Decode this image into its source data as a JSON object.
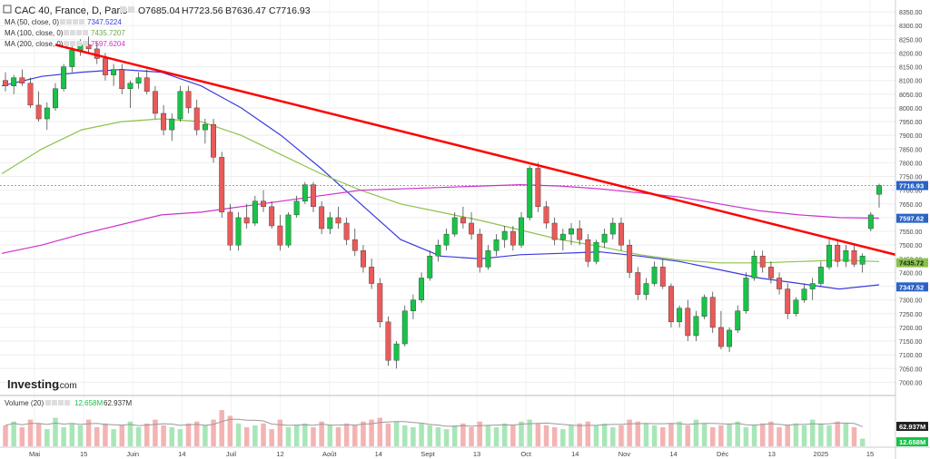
{
  "header": {
    "symbol": "CAC 40, France, D, Paris",
    "ohlc": {
      "open": "O7685.04",
      "high": "H7723.56",
      "low": "B7636.47",
      "close": "C7716.93"
    }
  },
  "legend": [
    {
      "label": "MA (50, close, 0)",
      "value": "7347.5224",
      "color": "#3a3adf"
    },
    {
      "label": "MA (100, close, 0)",
      "value": "7435.7207",
      "color": "#8bc34a"
    },
    {
      "label": "MA (200, close, 0)",
      "value": "7597.6204",
      "color": "#cc33cc"
    }
  ],
  "volume_legend": {
    "label": "Volume (20)",
    "value1": "12.658M",
    "value2": "62.937M"
  },
  "brand": {
    "name": "Investing",
    "suffix": ".com"
  },
  "colors": {
    "up": "#19c249",
    "down": "#e85b5b",
    "trendline": "#ff0000",
    "ma50": "#3a3adf",
    "ma100": "#8bc34a",
    "ma200": "#cc33cc"
  },
  "chart_data": {
    "type": "candlestick",
    "title": "CAC 40, France, D, Paris",
    "y_axis": {
      "ticks": [
        "8350.00",
        "8300.00",
        "8250.00",
        "8200.00",
        "8150.00",
        "8100.00",
        "8050.00",
        "8000.00",
        "7950.00",
        "7900.00",
        "7850.00",
        "7800.00",
        "7750.00",
        "7700.00",
        "7650.00",
        "7600.00",
        "7550.00",
        "7500.00",
        "7450.00",
        "7400.00",
        "7350.00",
        "7300.00",
        "7250.00",
        "7200.00",
        "7150.00",
        "7100.00",
        "7050.00",
        "7000.00"
      ],
      "range": [
        6965,
        8380
      ]
    },
    "x_axis": {
      "ticks": [
        "Mai",
        "15",
        "Juin",
        "14",
        "Juil",
        "12",
        "Août",
        "14",
        "Sept",
        "13",
        "Oct",
        "14",
        "Nov",
        "14",
        "Déc",
        "13",
        "2025",
        "15"
      ]
    },
    "price_labels": {
      "last": "7716.93",
      "ma200": "7597.62",
      "ma100": "7435.72",
      "ma50": "7347.52"
    },
    "ma_series": {
      "ma50": [
        8080,
        8115,
        8130,
        8140,
        8130,
        8080,
        8000,
        7900,
        7780,
        7650,
        7520,
        7460,
        7450,
        7465,
        7470,
        7475,
        7460,
        7440,
        7410,
        7380,
        7360,
        7340,
        7355
      ],
      "ma100": [
        7760,
        7850,
        7920,
        7950,
        7960,
        7950,
        7900,
        7830,
        7760,
        7700,
        7650,
        7620,
        7590,
        7555,
        7520,
        7495,
        7465,
        7445,
        7435,
        7435,
        7440,
        7445,
        7440
      ],
      "ma200": [
        7470,
        7500,
        7540,
        7575,
        7610,
        7620,
        7640,
        7660,
        7680,
        7700,
        7705,
        7710,
        7715,
        7720,
        7715,
        7705,
        7690,
        7675,
        7650,
        7625,
        7610,
        7600,
        7598
      ]
    },
    "trendline": {
      "from": {
        "x_index": 6,
        "y": 8230
      },
      "to": {
        "x_index": 100,
        "y": 7465
      }
    },
    "candles": [
      [
        8100,
        8130,
        8060,
        8080
      ],
      [
        8080,
        8120,
        8050,
        8110
      ],
      [
        8110,
        8140,
        8080,
        8090
      ],
      [
        8090,
        8110,
        8000,
        8010
      ],
      [
        8010,
        8060,
        7950,
        7960
      ],
      [
        7960,
        8020,
        7920,
        8000
      ],
      [
        8000,
        8090,
        7990,
        8070
      ],
      [
        8070,
        8160,
        8060,
        8150
      ],
      [
        8150,
        8230,
        8130,
        8210
      ],
      [
        8210,
        8250,
        8190,
        8230
      ],
      [
        8230,
        8260,
        8200,
        8215
      ],
      [
        8215,
        8240,
        8160,
        8180
      ],
      [
        8180,
        8200,
        8100,
        8120
      ],
      [
        8120,
        8160,
        8080,
        8140
      ],
      [
        8140,
        8160,
        8050,
        8070
      ],
      [
        8070,
        8100,
        8000,
        8090
      ],
      [
        8090,
        8130,
        8070,
        8110
      ],
      [
        8110,
        8140,
        8050,
        8060
      ],
      [
        8060,
        8080,
        7960,
        7980
      ],
      [
        7980,
        8010,
        7900,
        7920
      ],
      [
        7920,
        7980,
        7880,
        7960
      ],
      [
        7960,
        8080,
        7950,
        8060
      ],
      [
        8060,
        8080,
        7980,
        8000
      ],
      [
        8000,
        8030,
        7900,
        7920
      ],
      [
        7920,
        7960,
        7870,
        7940
      ],
      [
        7940,
        7960,
        7800,
        7820
      ],
      [
        7820,
        7840,
        7600,
        7620
      ],
      [
        7620,
        7650,
        7480,
        7500
      ],
      [
        7500,
        7620,
        7480,
        7600
      ],
      [
        7600,
        7650,
        7560,
        7580
      ],
      [
        7580,
        7680,
        7570,
        7660
      ],
      [
        7660,
        7700,
        7620,
        7640
      ],
      [
        7640,
        7660,
        7560,
        7570
      ],
      [
        7570,
        7610,
        7480,
        7500
      ],
      [
        7500,
        7620,
        7490,
        7610
      ],
      [
        7610,
        7680,
        7600,
        7660
      ],
      [
        7660,
        7730,
        7650,
        7720
      ],
      [
        7720,
        7730,
        7620,
        7640
      ],
      [
        7640,
        7660,
        7540,
        7560
      ],
      [
        7560,
        7620,
        7540,
        7600
      ],
      [
        7600,
        7640,
        7560,
        7580
      ],
      [
        7580,
        7600,
        7500,
        7520
      ],
      [
        7520,
        7560,
        7460,
        7480
      ],
      [
        7480,
        7500,
        7400,
        7420
      ],
      [
        7420,
        7450,
        7340,
        7360
      ],
      [
        7360,
        7380,
        7200,
        7220
      ],
      [
        7220,
        7240,
        7060,
        7080
      ],
      [
        7080,
        7150,
        7050,
        7140
      ],
      [
        7140,
        7280,
        7130,
        7260
      ],
      [
        7260,
        7320,
        7230,
        7300
      ],
      [
        7300,
        7400,
        7290,
        7380
      ],
      [
        7380,
        7480,
        7370,
        7460
      ],
      [
        7460,
        7520,
        7440,
        7500
      ],
      [
        7500,
        7560,
        7480,
        7540
      ],
      [
        7540,
        7620,
        7530,
        7600
      ],
      [
        7600,
        7640,
        7560,
        7580
      ],
      [
        7580,
        7620,
        7520,
        7540
      ],
      [
        7540,
        7560,
        7400,
        7420
      ],
      [
        7420,
        7500,
        7410,
        7480
      ],
      [
        7480,
        7540,
        7460,
        7520
      ],
      [
        7520,
        7570,
        7490,
        7550
      ],
      [
        7550,
        7570,
        7480,
        7500
      ],
      [
        7500,
        7620,
        7490,
        7600
      ],
      [
        7600,
        7790,
        7590,
        7780
      ],
      [
        7780,
        7800,
        7620,
        7640
      ],
      [
        7640,
        7660,
        7560,
        7580
      ],
      [
        7580,
        7600,
        7500,
        7520
      ],
      [
        7520,
        7560,
        7480,
        7540
      ],
      [
        7540,
        7580,
        7500,
        7560
      ],
      [
        7560,
        7590,
        7500,
        7520
      ],
      [
        7520,
        7540,
        7420,
        7440
      ],
      [
        7440,
        7520,
        7430,
        7510
      ],
      [
        7510,
        7560,
        7490,
        7540
      ],
      [
        7540,
        7600,
        7520,
        7580
      ],
      [
        7580,
        7600,
        7480,
        7500
      ],
      [
        7500,
        7520,
        7380,
        7400
      ],
      [
        7400,
        7420,
        7300,
        7320
      ],
      [
        7320,
        7380,
        7300,
        7360
      ],
      [
        7360,
        7440,
        7350,
        7420
      ],
      [
        7420,
        7450,
        7340,
        7350
      ],
      [
        7350,
        7360,
        7200,
        7220
      ],
      [
        7220,
        7280,
        7200,
        7270
      ],
      [
        7270,
        7300,
        7150,
        7170
      ],
      [
        7170,
        7260,
        7150,
        7240
      ],
      [
        7240,
        7320,
        7230,
        7310
      ],
      [
        7310,
        7330,
        7180,
        7200
      ],
      [
        7200,
        7260,
        7120,
        7130
      ],
      [
        7130,
        7200,
        7110,
        7190
      ],
      [
        7190,
        7280,
        7180,
        7260
      ],
      [
        7260,
        7400,
        7250,
        7380
      ],
      [
        7380,
        7480,
        7370,
        7460
      ],
      [
        7460,
        7480,
        7400,
        7420
      ],
      [
        7420,
        7440,
        7360,
        7380
      ],
      [
        7380,
        7400,
        7320,
        7340
      ],
      [
        7340,
        7360,
        7230,
        7250
      ],
      [
        7250,
        7310,
        7240,
        7300
      ],
      [
        7300,
        7360,
        7290,
        7340
      ],
      [
        7340,
        7380,
        7300,
        7360
      ],
      [
        7360,
        7440,
        7350,
        7420
      ],
      [
        7420,
        7520,
        7410,
        7500
      ],
      [
        7500,
        7520,
        7420,
        7440
      ],
      [
        7440,
        7500,
        7420,
        7480
      ],
      [
        7480,
        7500,
        7420,
        7430
      ],
      [
        7430,
        7470,
        7400,
        7460
      ],
      [
        7560,
        7620,
        7550,
        7610
      ],
      [
        7685.04,
        7723.56,
        7636.47,
        7716.93
      ]
    ],
    "volumes": [
      0.55,
      0.65,
      0.5,
      0.7,
      0.6,
      0.45,
      0.75,
      0.5,
      0.6,
      0.55,
      0.7,
      0.5,
      0.6,
      0.45,
      0.55,
      0.65,
      0.5,
      0.6,
      0.7,
      0.55,
      0.5,
      0.45,
      0.6,
      0.65,
      0.55,
      0.7,
      0.95,
      0.8,
      0.6,
      0.5,
      0.55,
      0.6,
      0.45,
      0.7,
      0.5,
      0.55,
      0.6,
      0.5,
      0.65,
      0.55,
      0.5,
      0.6,
      0.55,
      0.65,
      0.7,
      0.75,
      0.6,
      0.65,
      0.55,
      0.5,
      0.6,
      0.55,
      0.5,
      0.45,
      0.55,
      0.6,
      0.5,
      0.65,
      0.55,
      0.5,
      0.6,
      0.55,
      0.65,
      0.7,
      0.6,
      0.55,
      0.5,
      0.45,
      0.55,
      0.6,
      0.65,
      0.55,
      0.6,
      0.5,
      0.55,
      0.7,
      0.65,
      0.6,
      0.55,
      0.5,
      0.6,
      0.65,
      0.55,
      0.7,
      0.6,
      0.5,
      0.55,
      0.6,
      0.65,
      0.5,
      0.55,
      0.6,
      0.65,
      0.5,
      0.55,
      0.6,
      0.55,
      0.7,
      0.6,
      0.55,
      0.65,
      0.6,
      0.5,
      0.2
    ]
  }
}
